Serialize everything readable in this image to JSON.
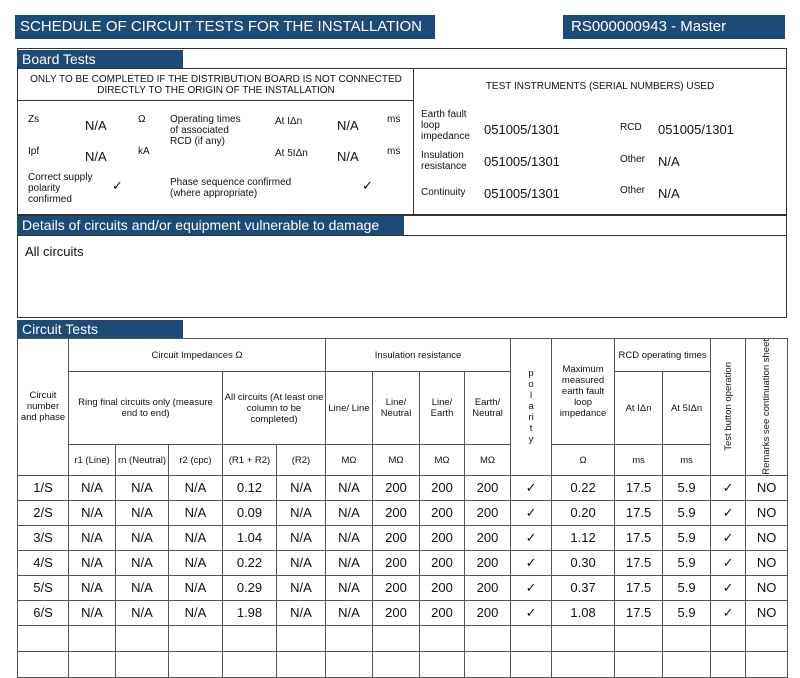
{
  "header": {
    "title": "SCHEDULE OF CIRCUIT TESTS FOR THE INSTALLATION",
    "reference": "RS000000943 - Master"
  },
  "board_tests": {
    "title": "Board Tests",
    "note": "ONLY TO BE COMPLETED IF THE DISTRIBUTION BOARD IS NOT CONNECTED DIRECTLY TO THE ORIGIN OF THE INSTALLATION",
    "zs": {
      "label": "Zs",
      "value": "N/A",
      "unit": "Ω"
    },
    "ipf": {
      "label": "Ipf",
      "value": "N/A",
      "unit": "kA"
    },
    "rcd_times": {
      "label": "Operating times of associated RCD (if any)",
      "at_1": {
        "label": "At IΔn",
        "value": "N/A",
        "unit": "ms"
      },
      "at_5": {
        "label": "At 5IΔn",
        "value": "N/A",
        "unit": "ms"
      }
    },
    "polarity": {
      "label": "Correct supply polarity confirmed",
      "value": "✓"
    },
    "phase_sequence": {
      "label": "Phase sequence confirmed (where appropriate)",
      "value": "✓"
    },
    "instruments": {
      "title": "TEST INSTRUMENTS (SERIAL NUMBERS) USED",
      "earth_fault_loop": {
        "label": "Earth fault loop impedance",
        "value": "051005/1301"
      },
      "rcd": {
        "label": "RCD",
        "value": "051005/1301"
      },
      "insulation": {
        "label": "Insulation resistance",
        "value": "051005/1301"
      },
      "other_1": {
        "label": "Other",
        "value": "N/A"
      },
      "continuity": {
        "label": "Continuity",
        "value": "051005/1301"
      },
      "other_2": {
        "label": "Other",
        "value": "N/A"
      }
    }
  },
  "details": {
    "title": "Details of circuits and/or equipment vulnerable to damage",
    "text": "All circuits"
  },
  "circuit_tests": {
    "title": "Circuit Tests",
    "headers": {
      "circuit": "Circuit number and phase",
      "impedances": "Circuit Impedances Ω",
      "ring_final": "Ring final circuits only (measure end to end)",
      "all_circuits": "All circuits (At least one column to be completed)",
      "r1": "r1 (Line)",
      "rn": "rn (Neutral)",
      "r2": "r2 (cpc)",
      "r1_r2": "(R1 + R2)",
      "big_r2": "(R2)",
      "insulation": "Insulation resistance",
      "line_line": "Line/ Line",
      "line_neutral": "Line/ Neutral",
      "line_earth": "Line/ Earth",
      "earth_neutral": "Earth/ Neutral",
      "mohm_1": "MΩ",
      "mohm_2": "MΩ",
      "mohm_3": "MΩ",
      "mohm_4": "MΩ",
      "polarity": "polarity",
      "max_zs": "Maximum measured earth fault loop impedance",
      "max_zs_unit": "Ω",
      "rcd_times": "RCD operating times",
      "at_1": "At IΔn",
      "at_5": "At 5IΔn",
      "ms_1": "ms",
      "ms_2": "ms",
      "test_button": "Test button operation",
      "remarks": "Remarks see continuation sheet"
    },
    "rows": [
      [
        "1/S",
        "N/A",
        "N/A",
        "N/A",
        "0.12",
        "N/A",
        "N/A",
        "200",
        "200",
        "200",
        "✓",
        "0.22",
        "17.5",
        "5.9",
        "✓",
        "NO"
      ],
      [
        "2/S",
        "N/A",
        "N/A",
        "N/A",
        "0.09",
        "N/A",
        "N/A",
        "200",
        "200",
        "200",
        "✓",
        "0.20",
        "17.5",
        "5.9",
        "✓",
        "NO"
      ],
      [
        "3/S",
        "N/A",
        "N/A",
        "N/A",
        "1.04",
        "N/A",
        "N/A",
        "200",
        "200",
        "200",
        "✓",
        "1.12",
        "17.5",
        "5.9",
        "✓",
        "NO"
      ],
      [
        "4/S",
        "N/A",
        "N/A",
        "N/A",
        "0.22",
        "N/A",
        "N/A",
        "200",
        "200",
        "200",
        "✓",
        "0.30",
        "17.5",
        "5.9",
        "✓",
        "NO"
      ],
      [
        "5/S",
        "N/A",
        "N/A",
        "N/A",
        "0.29",
        "N/A",
        "N/A",
        "200",
        "200",
        "200",
        "✓",
        "0.37",
        "17.5",
        "5.9",
        "✓",
        "NO"
      ],
      [
        "6/S",
        "N/A",
        "N/A",
        "N/A",
        "1.98",
        "N/A",
        "N/A",
        "200",
        "200",
        "200",
        "✓",
        "1.08",
        "17.5",
        "5.9",
        "✓",
        "NO"
      ]
    ]
  }
}
